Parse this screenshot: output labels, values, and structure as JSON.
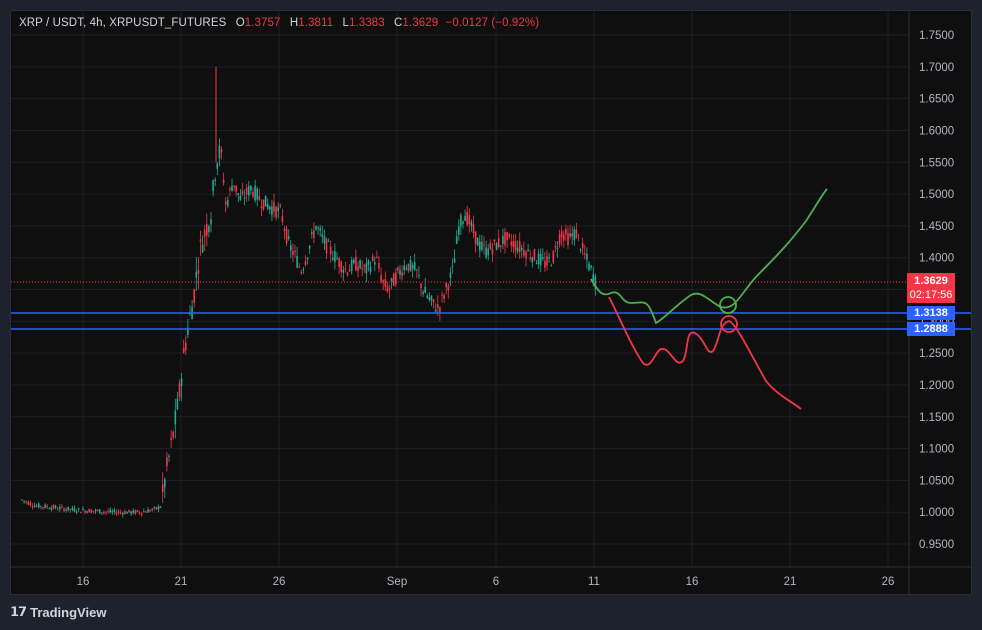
{
  "legend": {
    "symbol": "XRP / USDT, 4h, XRPUSDT_FUTURES",
    "open_key": "O",
    "open": "1.3757",
    "high_key": "H",
    "high": "1.3811",
    "low_key": "L",
    "low": "1.3383",
    "close_key": "C",
    "close": "1.3629",
    "change": "−0.0127 (−0.92%)"
  },
  "price_axis": {
    "ticks": [
      "1.7500",
      "1.7000",
      "1.6500",
      "1.6000",
      "1.5500",
      "1.5000",
      "1.4500",
      "1.4000",
      "1.3500",
      "1.3000",
      "1.2500",
      "1.2000",
      "1.1500",
      "1.1000",
      "1.0500",
      "1.0000",
      "0.9500"
    ],
    "current_price": "1.3629",
    "countdown": "02:17:56",
    "level_1": "1.3138",
    "level_2": "1.2888"
  },
  "time_axis": {
    "ticks": [
      "16",
      "21",
      "26",
      "Sep",
      "6",
      "11",
      "16",
      "21",
      "26"
    ]
  },
  "colors": {
    "up": "#22ab94",
    "down": "#f23645",
    "level_line": "#2962ff",
    "bull_path": "#4caf50",
    "bear_path": "#f23645"
  },
  "brand": "TradingView"
}
